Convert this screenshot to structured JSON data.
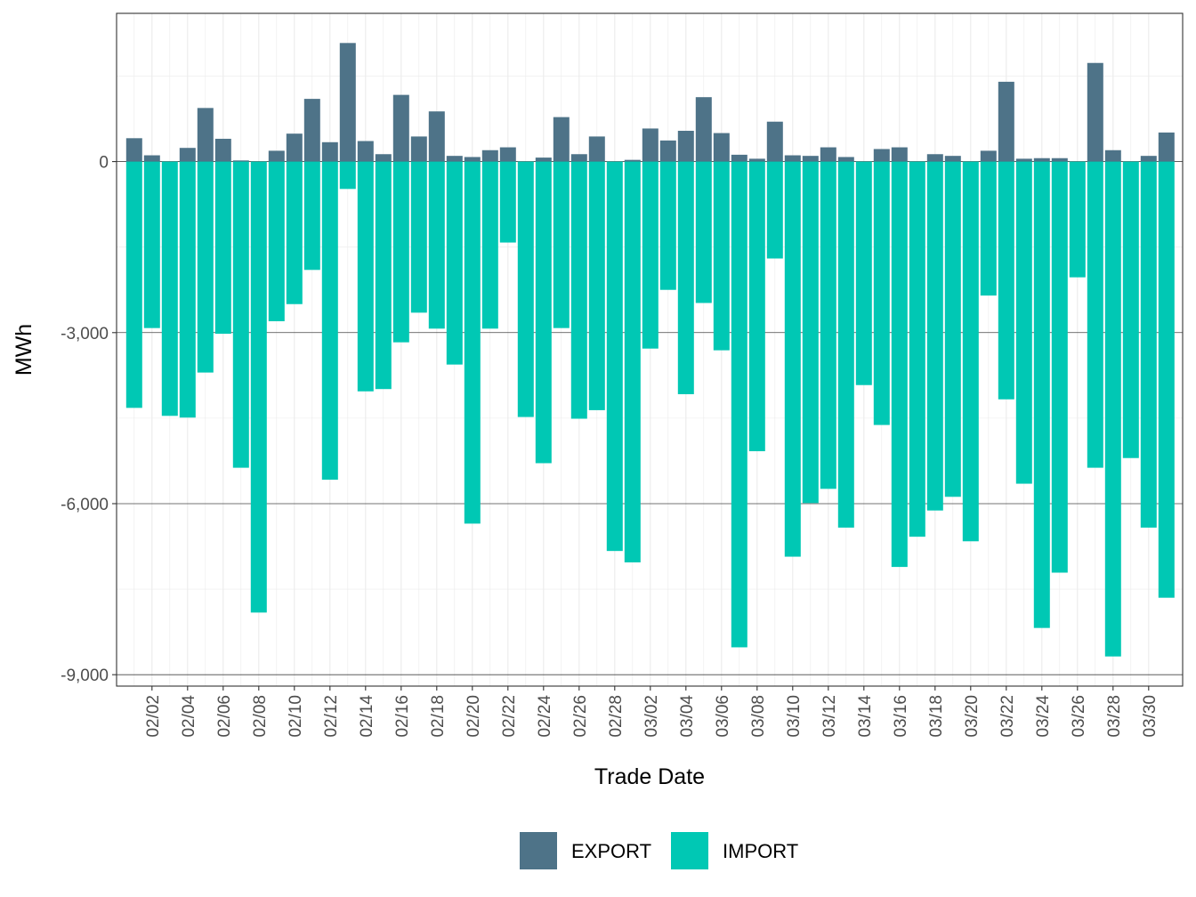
{
  "chart_data": {
    "type": "bar",
    "stacked": true,
    "xlabel": "Trade Date",
    "ylabel": "MWh",
    "ylim": [
      -9200,
      2600
    ],
    "yticks": [
      -9000,
      -6000,
      -3000,
      0
    ],
    "ytick_labels": [
      "-9,000",
      "-6,000",
      "-3,000",
      "0"
    ],
    "grid": true,
    "legend_position": "bottom",
    "categories": [
      "02/01",
      "02/02",
      "02/03",
      "02/04",
      "02/05",
      "02/06",
      "02/07",
      "02/08",
      "02/09",
      "02/10",
      "02/11",
      "02/12",
      "02/13",
      "02/14",
      "02/15",
      "02/16",
      "02/17",
      "02/18",
      "02/19",
      "02/20",
      "02/21",
      "02/22",
      "02/23",
      "02/24",
      "02/25",
      "02/26",
      "02/27",
      "02/28",
      "03/01",
      "03/02",
      "03/03",
      "03/04",
      "03/05",
      "03/06",
      "03/07",
      "03/08",
      "03/09",
      "03/10",
      "03/11",
      "03/12",
      "03/13",
      "03/14",
      "03/15",
      "03/16",
      "03/17",
      "03/18",
      "03/19",
      "03/20",
      "03/21",
      "03/22",
      "03/23",
      "03/24",
      "03/25",
      "03/26",
      "03/27",
      "03/28",
      "03/29",
      "03/30",
      "03/31"
    ],
    "xtick_labels": [
      "02/02",
      "02/04",
      "02/06",
      "02/08",
      "02/10",
      "02/12",
      "02/14",
      "02/16",
      "02/18",
      "02/20",
      "02/22",
      "02/24",
      "02/26",
      "02/28",
      "03/02",
      "03/04",
      "03/06",
      "03/08",
      "03/10",
      "03/12",
      "03/14",
      "03/16",
      "03/18",
      "03/20",
      "03/22",
      "03/24",
      "03/26",
      "03/28",
      "03/30"
    ],
    "series": [
      {
        "name": "EXPORT",
        "color": "#4e7388",
        "values": [
          410,
          110,
          0,
          240,
          940,
          400,
          20,
          0,
          190,
          490,
          1100,
          340,
          2080,
          360,
          130,
          1170,
          440,
          880,
          100,
          80,
          200,
          250,
          0,
          70,
          780,
          130,
          440,
          0,
          30,
          580,
          370,
          540,
          1130,
          500,
          120,
          50,
          700,
          110,
          100,
          250,
          80,
          0,
          220,
          250,
          0,
          130,
          100,
          0,
          190,
          1400,
          50,
          60,
          60,
          0,
          1730,
          200,
          0,
          100,
          510
        ]
      },
      {
        "name": "IMPORT",
        "color": "#00c8b4",
        "values": [
          -4320,
          -2920,
          -4460,
          -4490,
          -3700,
          -3020,
          -5370,
          -7910,
          -2800,
          -2500,
          -1900,
          -5580,
          -480,
          -4030,
          -3990,
          -3170,
          -2650,
          -2930,
          -3560,
          -6350,
          -2930,
          -1420,
          -4480,
          -5290,
          -2920,
          -4510,
          -4360,
          -6830,
          -7030,
          -3280,
          -2250,
          -4080,
          -2480,
          -3310,
          -8520,
          -5080,
          -1700,
          -6930,
          -5990,
          -5740,
          -6420,
          -3920,
          -4620,
          -7110,
          -6580,
          -6120,
          -5880,
          -6660,
          -2350,
          -4170,
          -5650,
          -8180,
          -7210,
          -2030,
          -5370,
          -8680,
          -5200,
          -6420,
          -7650
        ]
      }
    ]
  }
}
